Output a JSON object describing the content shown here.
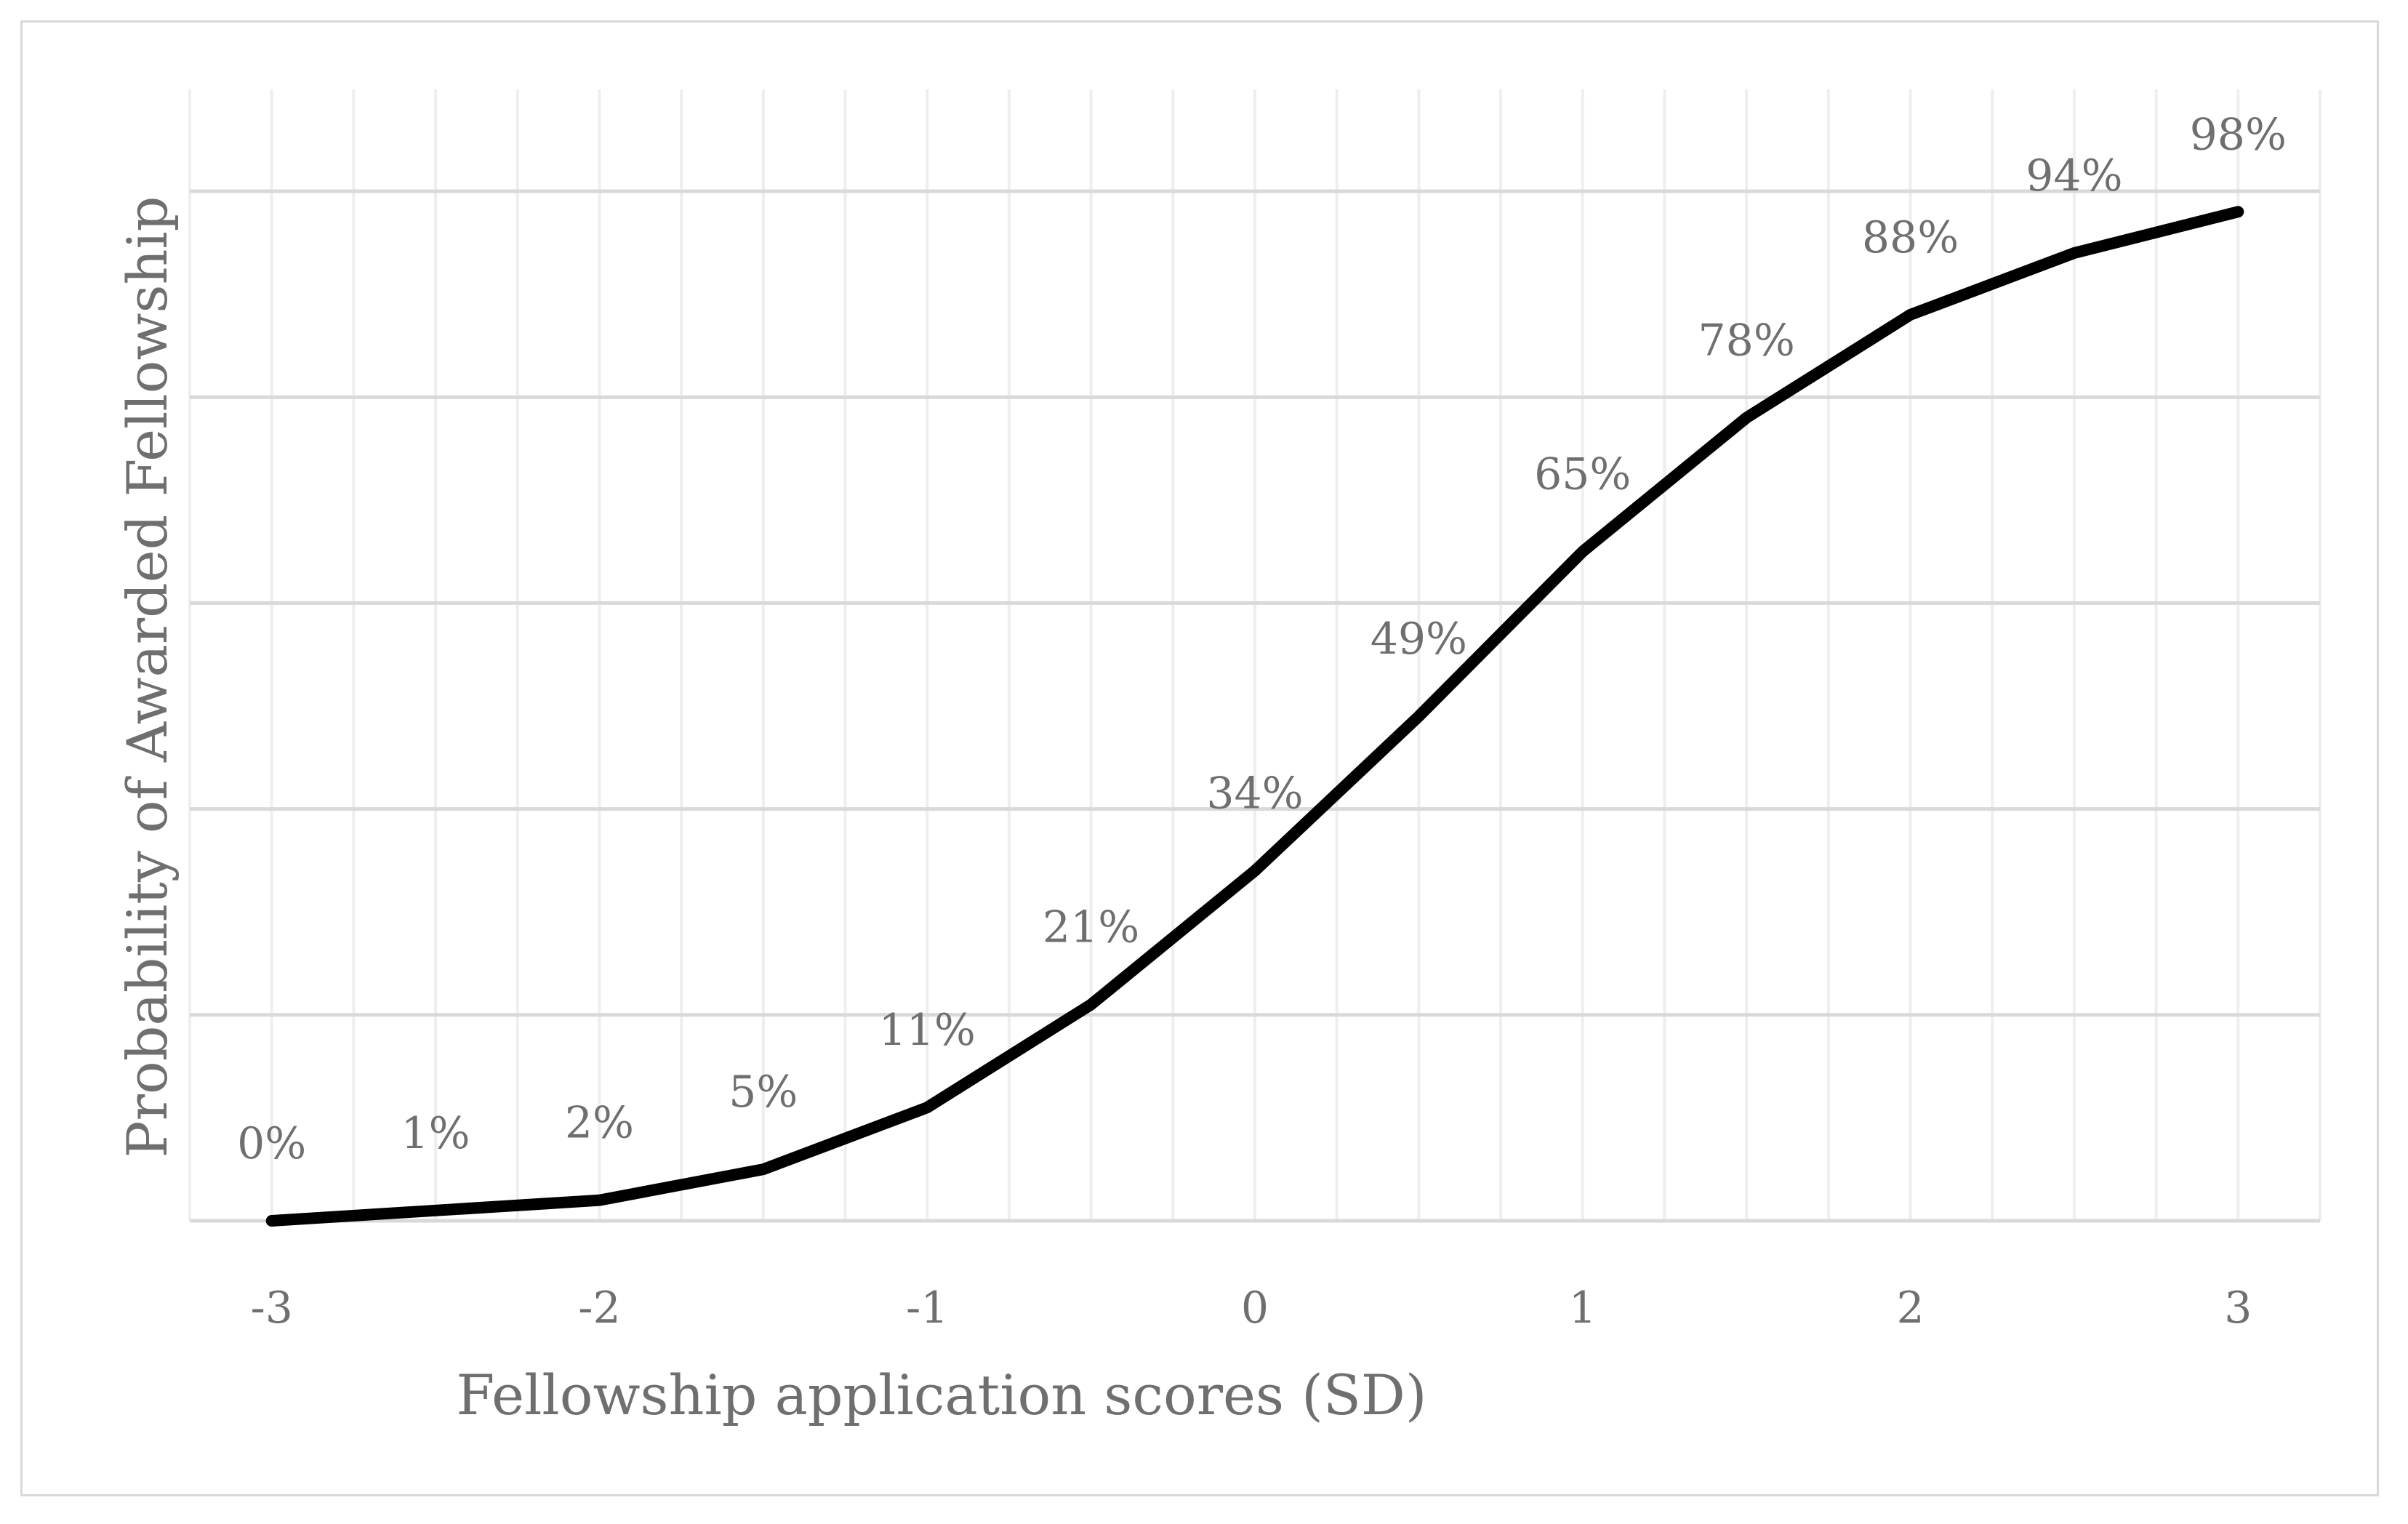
{
  "chart_data": {
    "type": "line",
    "title": "",
    "xlabel": "Fellowship application scores (SD)",
    "ylabel": "Probability of Awarded Fellowship",
    "x": [
      -3,
      -2.5,
      -2,
      -1.5,
      -1,
      -0.5,
      0,
      0.5,
      1,
      1.5,
      2,
      2.5,
      3
    ],
    "x_ticks": [
      -3,
      -2,
      -1,
      0,
      1,
      2,
      3
    ],
    "x_tick_labels": [
      "-3",
      "-2",
      "-1",
      "0",
      "1",
      "2",
      "3"
    ],
    "xlim": [
      -3.25,
      3.25
    ],
    "ylim": [
      0,
      1
    ],
    "y_gridlines": [
      0,
      0.2,
      0.4,
      0.6,
      0.8,
      1.0
    ],
    "grid": true,
    "legend": "none",
    "series": [
      {
        "values": [
          0.0,
          0.01,
          0.02,
          0.05,
          0.11,
          0.21,
          0.34,
          0.49,
          0.65,
          0.78,
          0.88,
          0.94,
          0.98
        ],
        "data_labels": [
          "0%",
          "1%",
          "2%",
          "5%",
          "11%",
          "21%",
          "34%",
          "49%",
          "65%",
          "78%",
          "88%",
          "94%",
          "98%"
        ],
        "color": "#000000"
      }
    ]
  }
}
